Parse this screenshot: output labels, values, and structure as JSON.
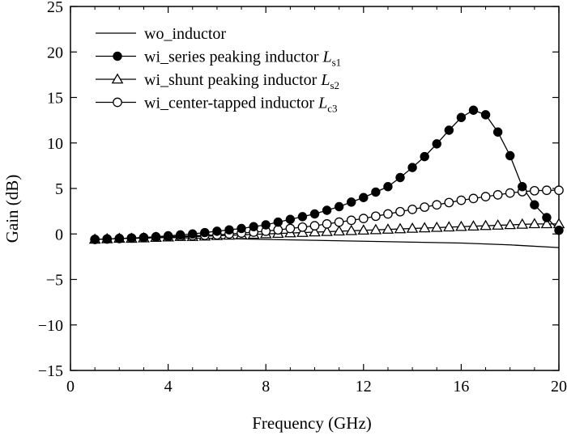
{
  "chart_data": {
    "type": "line",
    "title": "",
    "xlabel": "Frequency (GHz)",
    "ylabel": "Gain (dB)",
    "xlim": [
      0,
      20
    ],
    "ylim": [
      -15,
      25
    ],
    "x_ticks": [
      0,
      4,
      8,
      12,
      16,
      20
    ],
    "y_ticks": [
      -15,
      -10,
      -5,
      0,
      5,
      10,
      15,
      20,
      25
    ],
    "grid": false,
    "legend_position": "top-left",
    "series": [
      {
        "name": "wo_inductor",
        "marker": "none",
        "x": [
          1,
          2,
          4,
          6,
          8,
          10,
          12,
          14,
          16,
          18,
          20
        ],
        "y": [
          -0.6,
          -0.5,
          -0.4,
          -0.5,
          -0.6,
          -0.7,
          -0.8,
          -0.9,
          -1.0,
          -1.2,
          -1.5
        ]
      },
      {
        "name": "wi_series peaking inductor",
        "symbol": "L",
        "subscript": "s1",
        "marker": "filled-circle",
        "x": [
          1,
          1.5,
          2,
          2.5,
          3,
          3.5,
          4,
          4.5,
          5,
          5.5,
          6,
          6.5,
          7,
          7.5,
          8,
          8.5,
          9,
          9.5,
          10,
          10.5,
          11,
          11.5,
          12,
          12.5,
          13,
          13.5,
          14,
          14.5,
          15,
          15.5,
          16,
          16.5,
          17,
          17.5,
          18,
          18.5,
          19,
          19.5,
          20
        ],
        "y": [
          -0.6,
          -0.55,
          -0.5,
          -0.45,
          -0.4,
          -0.3,
          -0.2,
          -0.1,
          0,
          0.15,
          0.3,
          0.45,
          0.6,
          0.8,
          1.0,
          1.3,
          1.6,
          1.9,
          2.2,
          2.6,
          3.0,
          3.5,
          4.0,
          4.6,
          5.2,
          6.2,
          7.3,
          8.5,
          9.9,
          11.4,
          12.8,
          13.6,
          13.1,
          11.2,
          8.6,
          5.2,
          3.2,
          1.8,
          0.4
        ]
      },
      {
        "name": "wi_shunt peaking inductor",
        "symbol": "L",
        "subscript": "s2",
        "marker": "open-triangle",
        "x": [
          1,
          1.5,
          2,
          2.5,
          3,
          3.5,
          4,
          4.5,
          5,
          5.5,
          6,
          6.5,
          7,
          7.5,
          8,
          8.5,
          9,
          9.5,
          10,
          10.5,
          11,
          11.5,
          12,
          12.5,
          13,
          13.5,
          14,
          14.5,
          15,
          15.5,
          16,
          16.5,
          17,
          17.5,
          18,
          18.5,
          19,
          19.5,
          20
        ],
        "y": [
          -0.6,
          -0.55,
          -0.5,
          -0.5,
          -0.45,
          -0.4,
          -0.35,
          -0.3,
          -0.3,
          -0.25,
          -0.2,
          -0.15,
          -0.1,
          -0.05,
          0,
          0.05,
          0.1,
          0.15,
          0.2,
          0.25,
          0.3,
          0.35,
          0.4,
          0.45,
          0.5,
          0.55,
          0.6,
          0.65,
          0.7,
          0.75,
          0.8,
          0.85,
          0.9,
          0.95,
          1.0,
          1.05,
          1.1,
          1.1,
          1.1
        ]
      },
      {
        "name": "wi_center-tapped inductor",
        "symbol": "L",
        "subscript": "c3",
        "marker": "open-circle",
        "x": [
          1,
          1.5,
          2,
          2.5,
          3,
          3.5,
          4,
          4.5,
          5,
          5.5,
          6,
          6.5,
          7,
          7.5,
          8,
          8.5,
          9,
          9.5,
          10,
          10.5,
          11,
          11.5,
          12,
          12.5,
          13,
          13.5,
          14,
          14.5,
          15,
          15.5,
          16,
          16.5,
          17,
          17.5,
          18,
          18.5,
          19,
          19.5,
          20
        ],
        "y": [
          -0.6,
          -0.55,
          -0.5,
          -0.45,
          -0.4,
          -0.35,
          -0.3,
          -0.25,
          -0.2,
          -0.15,
          -0.1,
          0,
          0.1,
          0.2,
          0.3,
          0.45,
          0.6,
          0.75,
          0.9,
          1.1,
          1.3,
          1.5,
          1.7,
          1.95,
          2.2,
          2.45,
          2.7,
          2.95,
          3.2,
          3.45,
          3.7,
          3.9,
          4.1,
          4.3,
          4.5,
          4.65,
          4.75,
          4.8,
          4.8
        ]
      }
    ]
  }
}
